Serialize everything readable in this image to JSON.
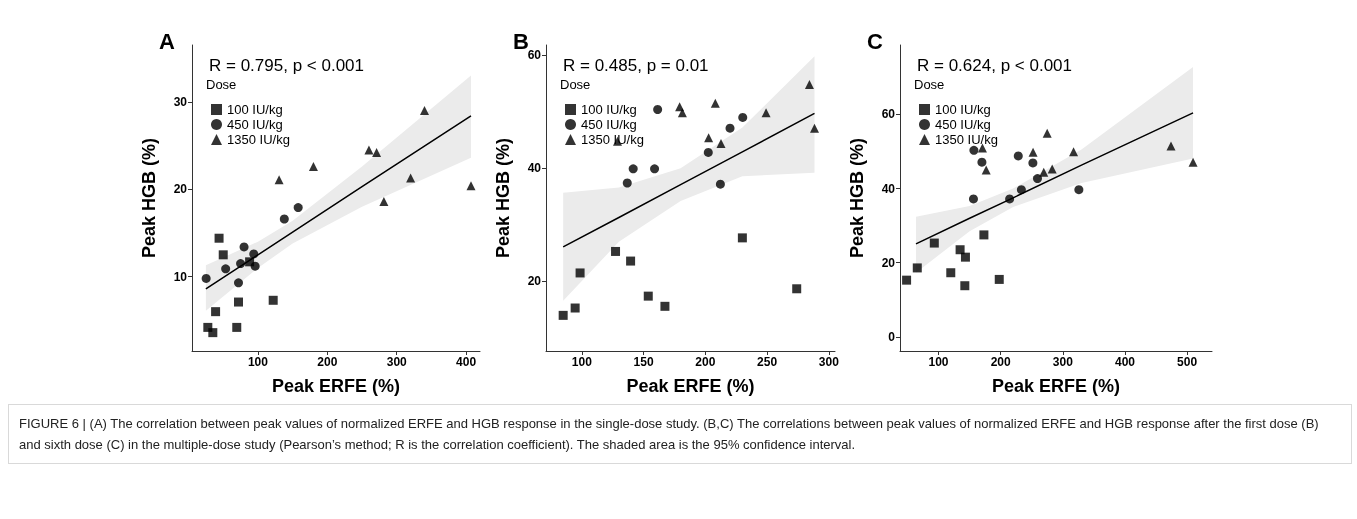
{
  "chart_data": [
    {
      "type": "scatter",
      "title": "A",
      "subtitle": "R = 0.795, p < 0.001",
      "xlabel": "Peak ERFE (%)",
      "ylabel": "Peak HGB (%)",
      "legend_title": "Dose",
      "legend": "top left",
      "xlim": [
        5,
        420
      ],
      "ylim": [
        1.5,
        36.5
      ],
      "xticks": [
        100,
        200,
        300,
        400
      ],
      "yticks": [
        10,
        20,
        30
      ],
      "annotations": [
        "FIGURE 6 | (A) The correlation between peak values of normalized ERFE and HGB response in the single-dose study. (B,C) The correlations between peak values of normalized ERFE and HGB response after the first dose (B) and sixth dose (C) in the multiple-dose study (Pearson’s method; R is the correlation coefficient). The shaded area is the 95% confidence interval."
      ],
      "series": [
        {
          "name": "100 IU/kg",
          "color": "#000000",
          "marker": "square",
          "x": [
            27.8,
            35,
            39,
            44,
            50,
            69.5,
            72,
            88,
            122
          ],
          "values": [
            4.2,
            3.6,
            6.0,
            14.4,
            12.5,
            4.2,
            7.1,
            11.7,
            7.3
          ]
        },
        {
          "name": "450 IU/kg",
          "color": "#000000",
          "marker": "circle",
          "x": [
            25.4,
            53.5,
            72,
            75,
            80,
            94,
            96,
            138,
            158
          ],
          "values": [
            9.8,
            10.9,
            9.3,
            11.5,
            13.4,
            12.6,
            11.2,
            16.6,
            17.9
          ]
        },
        {
          "name": "1350 IU/kg",
          "color": "#000000",
          "marker": "triangle",
          "x": [
            130.5,
            180,
            260,
            271,
            281.5,
            320,
            340,
            407
          ],
          "values": [
            21.1,
            22.6,
            24.5,
            24.2,
            18.6,
            21.3,
            29.0,
            20.4
          ]
        },
        {
          "type": "line",
          "color": "#000000",
          "marker": "none",
          "x": [
            25,
            100,
            150,
            250,
            407
          ],
          "values": [
            8.6,
            12.5,
            15.1,
            20.3,
            28.4
          ],
          "lower": [
            6.1,
            11.0,
            13.8,
            18.0,
            23.6
          ],
          "upper": [
            11.3,
            14.0,
            16.4,
            22.6,
            33.0
          ]
        }
      ]
    },
    {
      "type": "scatter",
      "title": "B",
      "subtitle": "R = 0.485, p = 0.01",
      "xlabel": "Peak ERFE (%)",
      "ylabel": "Peak HGB (%)",
      "legend_title": "Dose",
      "legend": "top left",
      "xlim": [
        71,
        305
      ],
      "ylim": [
        7.7,
        61.8
      ],
      "xticks": [
        100,
        150,
        200,
        250,
        300
      ],
      "yticks": [
        20,
        40,
        60
      ],
      "series": [
        {
          "name": "100 IU/kg",
          "color": "#000000",
          "marker": "square",
          "x": [
            84.9,
            94.6,
            98.6,
            127.3,
            139.5,
            153.8,
            167.3,
            230,
            274
          ],
          "values": [
            14.0,
            15.3,
            21.5,
            25.3,
            23.6,
            17.4,
            15.6,
            27.7,
            18.7
          ]
        },
        {
          "name": "450 IU/kg",
          "color": "#000000",
          "marker": "circle",
          "x": [
            136.8,
            141.6,
            158.9,
            161.4,
            202.4,
            212.2,
            220,
            230.3
          ],
          "values": [
            37.4,
            39.9,
            39.9,
            50.4,
            42.8,
            37.2,
            47.1,
            49.0
          ]
        },
        {
          "name": "1350 IU/kg",
          "color": "#000000",
          "marker": "triangle",
          "x": [
            128.9,
            179.2,
            181.4,
            208.1,
            202.7,
            212.7,
            249.2,
            284.3,
            288.4
          ],
          "values": [
            44.8,
            50.9,
            49.8,
            51.5,
            45.4,
            44.4,
            49.8,
            54.8,
            47.1
          ]
        },
        {
          "type": "line",
          "color": "#000000",
          "marker": "none",
          "x": [
            84.9,
            130,
            180,
            230,
            288.4
          ],
          "values": [
            26.1,
            31.3,
            37.1,
            42.9,
            49.7
          ],
          "lower": [
            16.6,
            27.0,
            34.2,
            38.6,
            39.2
          ],
          "upper": [
            35.7,
            36.6,
            40.0,
            47.2,
            59.8
          ]
        }
      ]
    },
    {
      "type": "scatter",
      "title": "C",
      "subtitle": "R = 0.624, p < 0.001",
      "xlabel": "Peak ERFE (%)",
      "ylabel": "Peak HGB (%)",
      "legend_title": "Dose",
      "legend": "top left",
      "xlim": [
        38,
        540
      ],
      "ylim": [
        -3.8,
        78.7
      ],
      "xticks": [
        100,
        200,
        300,
        400,
        500
      ],
      "yticks": [
        0,
        20,
        40,
        60
      ],
      "series": [
        {
          "name": "100 IU/kg",
          "color": "#000000",
          "marker": "square",
          "x": [
            48.6,
            65.8,
            93.2,
            119.7,
            134.7,
            143.3,
            142.3,
            173,
            197.7
          ],
          "values": [
            15.3,
            18.6,
            25.3,
            17.3,
            23.5,
            21.5,
            13.8,
            27.5,
            15.5
          ]
        },
        {
          "name": "450 IU/kg",
          "color": "#000000",
          "marker": "circle",
          "x": [
            156.9,
            169.8,
            156.2,
            214.4,
            228.3,
            251.8,
            233.3,
            259.2,
            325.8
          ],
          "values": [
            50.3,
            47.1,
            37.2,
            37.2,
            48.8,
            46.9,
            39.7,
            42.7,
            39.7
          ]
        },
        {
          "name": "1350 IU/kg",
          "color": "#000000",
          "marker": "triangle",
          "x": [
            170.6,
            176.7,
            274.8,
            252.1,
            269.3,
            282.9,
            317.3,
            474,
            509.5
          ],
          "values": [
            50.9,
            45.0,
            54.9,
            49.8,
            44.4,
            45.3,
            49.9,
            51.5,
            47.1
          ]
        },
        {
          "type": "line",
          "color": "#000000",
          "marker": "none",
          "x": [
            63.7,
            150,
            220,
            330,
            509.5
          ],
          "values": [
            25.1,
            32.0,
            37.5,
            46.3,
            60.4
          ],
          "lower": [
            17.3,
            28.5,
            35.0,
            41.5,
            48.1
          ],
          "upper": [
            32.4,
            35.3,
            40.0,
            50.5,
            72.8
          ]
        }
      ]
    }
  ]
}
